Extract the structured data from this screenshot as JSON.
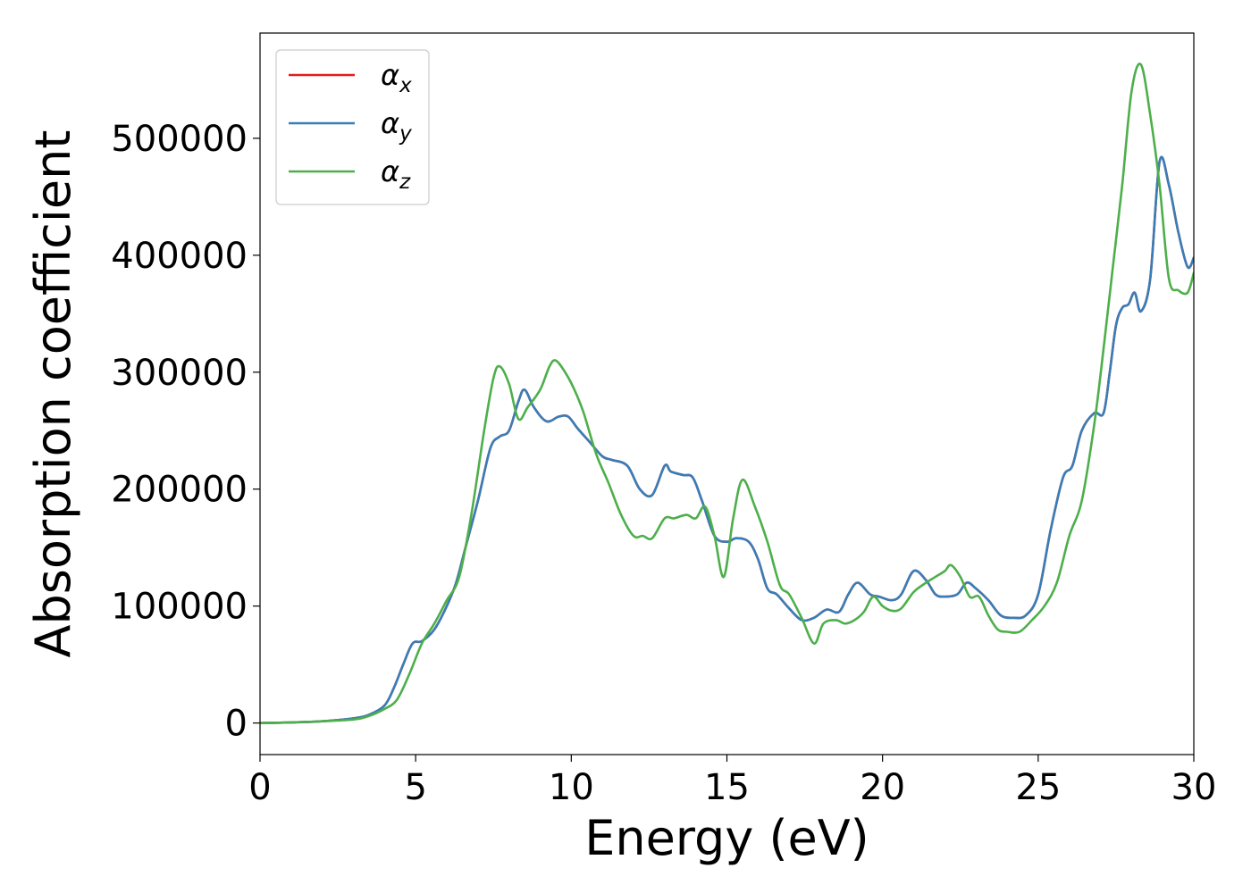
{
  "chart_data": {
    "type": "line",
    "title": "",
    "xlabel": "Energy (eV)",
    "ylabel": "Absorption coefficient",
    "xlim": [
      0,
      30
    ],
    "ylim": [
      -27000,
      590000
    ],
    "xticks": [
      0,
      5,
      10,
      15,
      20,
      25,
      30
    ],
    "yticks": [
      0,
      100000,
      200000,
      300000,
      400000,
      500000
    ],
    "grid": false,
    "legend_position": "top-left",
    "series": [
      {
        "name": "αx",
        "symbol": "α",
        "subscript": "x",
        "color": "#e41a1c",
        "x": [
          0,
          1,
          2,
          3,
          3.5,
          4,
          4.3,
          4.6,
          4.9,
          5.2,
          5.6,
          6,
          6.3,
          6.6,
          7,
          7.4,
          7.7,
          8,
          8.3,
          8.5,
          8.8,
          9.2,
          9.6,
          9.9,
          10.2,
          10.6,
          11,
          11.3,
          11.8,
          12.2,
          12.6,
          13,
          13.2,
          13.6,
          13.9,
          14.2,
          14.6,
          15,
          15.3,
          15.7,
          16,
          16.3,
          16.6,
          17,
          17.4,
          17.8,
          18.2,
          18.6,
          18.9,
          19.2,
          19.6,
          19.9,
          20.3,
          20.6,
          21,
          21.4,
          21.7,
          22,
          22.4,
          22.7,
          23,
          23.4,
          23.8,
          24.2,
          24.6,
          25,
          25.4,
          25.8,
          26.1,
          26.4,
          26.8,
          27.1,
          27.3,
          27.5,
          27.7,
          27.9,
          28.1,
          28.3,
          28.6,
          28.9,
          29.2,
          29.5,
          29.8,
          30
        ],
        "y": [
          0,
          500,
          1500,
          4000,
          7000,
          15000,
          30000,
          50000,
          68000,
          70000,
          80000,
          100000,
          120000,
          150000,
          190000,
          235000,
          245000,
          250000,
          275000,
          285000,
          270000,
          258000,
          262000,
          262000,
          252000,
          240000,
          228000,
          225000,
          220000,
          200000,
          195000,
          220000,
          215000,
          212000,
          210000,
          190000,
          160000,
          155000,
          158000,
          155000,
          140000,
          115000,
          110000,
          98000,
          88000,
          90000,
          97000,
          95000,
          110000,
          120000,
          110000,
          108000,
          105000,
          110000,
          130000,
          122000,
          110000,
          108000,
          110000,
          120000,
          115000,
          105000,
          92000,
          90000,
          92000,
          110000,
          165000,
          210000,
          220000,
          250000,
          265000,
          265000,
          300000,
          340000,
          355000,
          358000,
          368000,
          352000,
          380000,
          480000,
          460000,
          420000,
          390000,
          398000
        ]
      },
      {
        "name": "αy",
        "symbol": "α",
        "subscript": "y",
        "color": "#377eb8",
        "x": [
          0,
          1,
          2,
          3,
          3.5,
          4,
          4.3,
          4.6,
          4.9,
          5.2,
          5.6,
          6,
          6.3,
          6.6,
          7,
          7.4,
          7.7,
          8,
          8.3,
          8.5,
          8.8,
          9.2,
          9.6,
          9.9,
          10.2,
          10.6,
          11,
          11.3,
          11.8,
          12.2,
          12.6,
          13,
          13.2,
          13.6,
          13.9,
          14.2,
          14.6,
          15,
          15.3,
          15.7,
          16,
          16.3,
          16.6,
          17,
          17.4,
          17.8,
          18.2,
          18.6,
          18.9,
          19.2,
          19.6,
          19.9,
          20.3,
          20.6,
          21,
          21.4,
          21.7,
          22,
          22.4,
          22.7,
          23,
          23.4,
          23.8,
          24.2,
          24.6,
          25,
          25.4,
          25.8,
          26.1,
          26.4,
          26.8,
          27.1,
          27.3,
          27.5,
          27.7,
          27.9,
          28.1,
          28.3,
          28.6,
          28.9,
          29.2,
          29.5,
          29.8,
          30
        ],
        "y": [
          0,
          500,
          1500,
          4000,
          7000,
          15000,
          30000,
          50000,
          68000,
          70000,
          80000,
          100000,
          120000,
          150000,
          190000,
          235000,
          245000,
          250000,
          275000,
          285000,
          270000,
          258000,
          262000,
          262000,
          252000,
          240000,
          228000,
          225000,
          220000,
          200000,
          195000,
          220000,
          215000,
          212000,
          210000,
          190000,
          160000,
          155000,
          158000,
          155000,
          140000,
          115000,
          110000,
          98000,
          88000,
          90000,
          97000,
          95000,
          110000,
          120000,
          110000,
          108000,
          105000,
          110000,
          130000,
          122000,
          110000,
          108000,
          110000,
          120000,
          115000,
          105000,
          92000,
          90000,
          92000,
          110000,
          165000,
          210000,
          220000,
          250000,
          265000,
          265000,
          300000,
          340000,
          355000,
          358000,
          368000,
          352000,
          380000,
          480000,
          460000,
          420000,
          390000,
          398000
        ]
      },
      {
        "name": "αz",
        "symbol": "α",
        "subscript": "z",
        "color": "#4daf4a",
        "x": [
          0,
          1,
          2,
          3,
          3.5,
          4,
          4.4,
          4.8,
          5.2,
          5.6,
          6,
          6.4,
          6.8,
          7.2,
          7.5,
          7.7,
          8,
          8.3,
          8.6,
          9,
          9.3,
          9.5,
          9.8,
          10.1,
          10.4,
          10.8,
          11.2,
          11.6,
          12,
          12.3,
          12.6,
          13,
          13.3,
          13.7,
          14,
          14.3,
          14.6,
          14.9,
          15.2,
          15.5,
          15.9,
          16.3,
          16.7,
          17,
          17.4,
          17.8,
          18.1,
          18.5,
          18.8,
          19.1,
          19.4,
          19.7,
          20,
          20.3,
          20.6,
          21,
          21.4,
          21.7,
          22,
          22.2,
          22.5,
          22.8,
          23.1,
          23.4,
          23.7,
          24,
          24.4,
          24.8,
          25.2,
          25.6,
          26,
          26.4,
          26.8,
          27.1,
          27.4,
          27.7,
          28,
          28.3,
          28.6,
          28.9,
          29.2,
          29.5,
          29.8,
          30
        ],
        "y": [
          0,
          500,
          1500,
          3000,
          6000,
          12000,
          20000,
          42000,
          68000,
          85000,
          105000,
          125000,
          180000,
          250000,
          295000,
          305000,
          290000,
          260000,
          270000,
          285000,
          305000,
          310000,
          300000,
          285000,
          265000,
          230000,
          205000,
          178000,
          160000,
          160000,
          158000,
          175000,
          175000,
          178000,
          175000,
          185000,
          160000,
          125000,
          175000,
          208000,
          185000,
          155000,
          118000,
          110000,
          90000,
          68000,
          85000,
          88000,
          85000,
          88000,
          95000,
          108000,
          100000,
          96000,
          98000,
          112000,
          120000,
          125000,
          130000,
          135000,
          125000,
          108000,
          108000,
          92000,
          80000,
          78000,
          78000,
          88000,
          100000,
          120000,
          160000,
          190000,
          255000,
          320000,
          390000,
          460000,
          540000,
          563000,
          520000,
          460000,
          380000,
          370000,
          368000,
          385000
        ]
      }
    ]
  }
}
